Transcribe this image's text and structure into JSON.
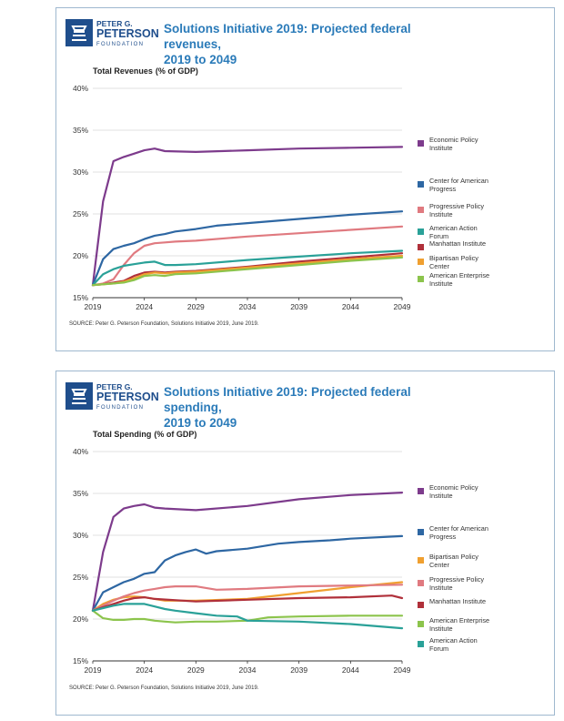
{
  "logo": {
    "line1": "PETER G.",
    "line2": "PETERSON",
    "line3": "FOUNDATION"
  },
  "chart_data": [
    {
      "type": "line",
      "title": "Solutions Initiative 2019: Projected federal revenues, 2019 to 2049",
      "title_lines": [
        "Solutions Initiative 2019: Projected federal revenues,",
        "2019 to 2049"
      ],
      "subtitle_main": "Total Revenues",
      "subtitle_unit": "(% of GDP)",
      "xlabel": "",
      "ylabel": "",
      "xlim": [
        2019,
        2049
      ],
      "ylim": [
        15,
        40
      ],
      "x_ticks": [
        "2019",
        "2024",
        "2029",
        "2034",
        "2039",
        "2044",
        "2049"
      ],
      "y_ticks": [
        "40%",
        "35%",
        "30%",
        "25%",
        "20%",
        "15%"
      ],
      "grid": "horizontal",
      "legend_position": "right",
      "source": "SOURCE: Peter G. Peterson Foundation, Solutions Initiative 2019, June 2019.",
      "series": [
        {
          "name": "Economic Policy Institute",
          "label_lines": [
            "Economic Policy",
            "Institute"
          ],
          "color": "#7d3b8c",
          "x": [
            2019,
            2020,
            2021,
            2022,
            2023,
            2024,
            2025,
            2026,
            2029,
            2034,
            2039,
            2044,
            2049
          ],
          "values": [
            16.5,
            26.5,
            31.3,
            31.8,
            32.2,
            32.6,
            32.8,
            32.5,
            32.4,
            32.6,
            32.8,
            32.9,
            33.0
          ]
        },
        {
          "name": "Center for American Progress",
          "label_lines": [
            "Center for American",
            "Progress"
          ],
          "color": "#2e67a3",
          "x": [
            2019,
            2020,
            2021,
            2022,
            2023,
            2024,
            2025,
            2026,
            2027,
            2029,
            2031,
            2034,
            2039,
            2044,
            2049
          ],
          "values": [
            16.5,
            19.6,
            20.8,
            21.2,
            21.5,
            22.0,
            22.4,
            22.6,
            22.9,
            23.2,
            23.6,
            23.9,
            24.4,
            24.9,
            25.3
          ]
        },
        {
          "name": "Progressive Policy Institute",
          "label_lines": [
            "Progressive Policy",
            "Institute"
          ],
          "color": "#e07a80",
          "x": [
            2019,
            2020,
            2021,
            2022,
            2023,
            2024,
            2025,
            2026,
            2027,
            2029,
            2034,
            2039,
            2044,
            2049
          ],
          "values": [
            16.5,
            16.7,
            17.2,
            18.9,
            20.3,
            21.2,
            21.5,
            21.6,
            21.7,
            21.8,
            22.3,
            22.7,
            23.1,
            23.5
          ]
        },
        {
          "name": "American Action Forum",
          "label_lines": [
            "American Action",
            "Forum"
          ],
          "color": "#2aa198",
          "x": [
            2019,
            2020,
            2021,
            2022,
            2023,
            2024,
            2025,
            2026,
            2027,
            2029,
            2034,
            2039,
            2044,
            2049
          ],
          "values": [
            16.5,
            17.8,
            18.4,
            18.8,
            19.0,
            19.2,
            19.3,
            18.9,
            18.9,
            19.0,
            19.5,
            19.9,
            20.3,
            20.6
          ]
        },
        {
          "name": "Manhattan Institute",
          "label_lines": [
            "Manhattan Institute"
          ],
          "color": "#b0303a",
          "x": [
            2019,
            2020,
            2021,
            2022,
            2023,
            2024,
            2025,
            2026,
            2027,
            2029,
            2034,
            2039,
            2044,
            2049
          ],
          "values": [
            16.5,
            16.6,
            16.8,
            17.0,
            17.6,
            18.0,
            18.1,
            18.0,
            18.1,
            18.2,
            18.7,
            19.3,
            19.8,
            20.3
          ]
        },
        {
          "name": "Bipartisan Policy Center",
          "label_lines": [
            "Bipartisan Policy",
            "Center"
          ],
          "color": "#f0a030",
          "x": [
            2019,
            2020,
            2021,
            2022,
            2023,
            2024,
            2025,
            2026,
            2027,
            2029,
            2034,
            2039,
            2044,
            2049
          ],
          "values": [
            16.5,
            16.6,
            16.7,
            16.9,
            17.3,
            17.8,
            18.0,
            17.9,
            18.0,
            18.1,
            18.6,
            19.1,
            19.6,
            20.0
          ]
        },
        {
          "name": "American Enterprise Institute",
          "label_lines": [
            "American Enterprise",
            "Institute"
          ],
          "color": "#8cc44c",
          "x": [
            2019,
            2020,
            2021,
            2022,
            2023,
            2024,
            2025,
            2026,
            2027,
            2029,
            2034,
            2039,
            2044,
            2049
          ],
          "values": [
            16.5,
            16.6,
            16.7,
            16.8,
            17.1,
            17.6,
            17.7,
            17.6,
            17.8,
            17.9,
            18.4,
            18.9,
            19.4,
            19.8
          ]
        }
      ]
    },
    {
      "type": "line",
      "title": "Solutions Initiative 2019: Projected federal spending, 2019 to 2049",
      "title_lines": [
        "Solutions Initiative 2019: Projected federal spending,",
        "2019 to 2049"
      ],
      "subtitle_main": "Total Spending",
      "subtitle_unit": "(% of GDP)",
      "xlabel": "",
      "ylabel": "",
      "xlim": [
        2019,
        2049
      ],
      "ylim": [
        15,
        40
      ],
      "x_ticks": [
        "2019",
        "2024",
        "2029",
        "2034",
        "2039",
        "2044",
        "2049"
      ],
      "y_ticks": [
        "40%",
        "35%",
        "30%",
        "25%",
        "20%",
        "15%"
      ],
      "grid": "horizontal",
      "legend_position": "right",
      "source": "SOURCE: Peter G. Peterson Foundation, Solutions Initiative 2019, June 2019.",
      "series": [
        {
          "name": "Economic Policy Institute",
          "label_lines": [
            "Economic Policy",
            "Institute"
          ],
          "color": "#7d3b8c",
          "x": [
            2019,
            2020,
            2021,
            2022,
            2023,
            2024,
            2025,
            2026,
            2029,
            2034,
            2039,
            2044,
            2049
          ],
          "values": [
            21.0,
            28.0,
            32.2,
            33.2,
            33.5,
            33.7,
            33.3,
            33.2,
            33.0,
            33.5,
            34.3,
            34.8,
            35.1
          ]
        },
        {
          "name": "Center for American Progress",
          "label_lines": [
            "Center for American",
            "Progress"
          ],
          "color": "#2e67a3",
          "x": [
            2019,
            2020,
            2021,
            2022,
            2023,
            2024,
            2025,
            2026,
            2027,
            2028,
            2029,
            2030,
            2031,
            2034,
            2037,
            2039,
            2042,
            2044,
            2049
          ],
          "values": [
            21.0,
            23.2,
            23.8,
            24.4,
            24.8,
            25.4,
            25.6,
            27.0,
            27.6,
            28.0,
            28.3,
            27.8,
            28.1,
            28.4,
            29.0,
            29.2,
            29.4,
            29.6,
            29.9
          ]
        },
        {
          "name": "Bipartisan Policy Center",
          "label_lines": [
            "Bipartisan Policy",
            "Center"
          ],
          "color": "#f0a030",
          "x": [
            2019,
            2020,
            2021,
            2022,
            2023,
            2024,
            2025,
            2026,
            2029,
            2034,
            2039,
            2044,
            2049
          ],
          "values": [
            21.0,
            21.8,
            22.3,
            22.6,
            22.7,
            22.6,
            22.4,
            22.2,
            22.2,
            22.4,
            23.1,
            23.8,
            24.4
          ]
        },
        {
          "name": "Progressive Policy Institute",
          "label_lines": [
            "Progressive Policy",
            "Institute"
          ],
          "color": "#e07a80",
          "x": [
            2019,
            2020,
            2021,
            2022,
            2023,
            2024,
            2025,
            2026,
            2027,
            2029,
            2031,
            2034,
            2039,
            2044,
            2049
          ],
          "values": [
            21.0,
            21.6,
            22.2,
            22.7,
            23.1,
            23.4,
            23.6,
            23.8,
            23.9,
            23.9,
            23.5,
            23.6,
            23.9,
            24.0,
            24.1
          ]
        },
        {
          "name": "Manhattan Institute",
          "label_lines": [
            "Manhattan Institute"
          ],
          "color": "#b0303a",
          "x": [
            2019,
            2020,
            2021,
            2022,
            2023,
            2024,
            2025,
            2029,
            2034,
            2039,
            2044,
            2048,
            2049
          ],
          "values": [
            21.0,
            21.4,
            21.8,
            22.2,
            22.5,
            22.6,
            22.4,
            22.1,
            22.3,
            22.5,
            22.6,
            22.8,
            22.5
          ]
        },
        {
          "name": "American Enterprise Institute",
          "label_lines": [
            "American Enterprise",
            "Institute"
          ],
          "color": "#8cc44c",
          "x": [
            2019,
            2020,
            2021,
            2022,
            2023,
            2024,
            2025,
            2026,
            2027,
            2029,
            2031,
            2034,
            2036,
            2039,
            2044,
            2049
          ],
          "values": [
            21.0,
            20.1,
            19.9,
            19.9,
            20.0,
            20.0,
            19.8,
            19.7,
            19.6,
            19.7,
            19.7,
            19.8,
            20.2,
            20.3,
            20.4,
            20.4
          ]
        },
        {
          "name": "American Action Forum",
          "label_lines": [
            "American Action",
            "Forum"
          ],
          "color": "#2aa198",
          "x": [
            2019,
            2020,
            2021,
            2022,
            2023,
            2024,
            2025,
            2026,
            2027,
            2029,
            2031,
            2033,
            2034,
            2039,
            2044,
            2049
          ],
          "values": [
            21.0,
            21.3,
            21.6,
            21.8,
            21.8,
            21.8,
            21.5,
            21.2,
            21.0,
            20.7,
            20.4,
            20.3,
            19.8,
            19.7,
            19.4,
            18.9
          ]
        }
      ]
    }
  ]
}
